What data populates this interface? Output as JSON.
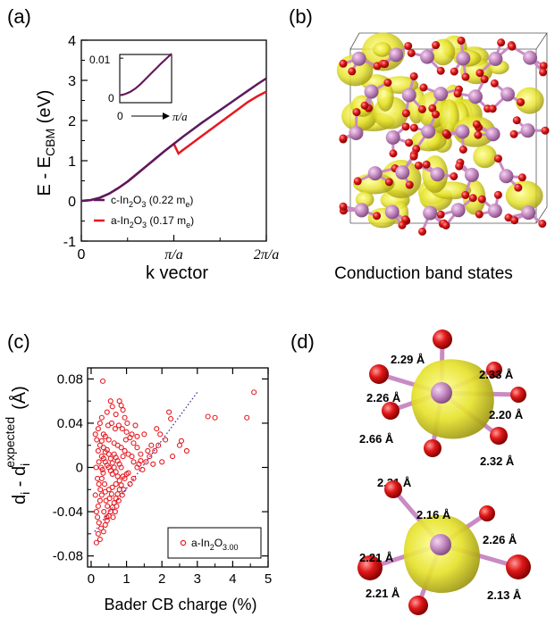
{
  "panels": {
    "a": {
      "label": "(a)",
      "ylabel_main": "E - E",
      "ylabel_sub": "CBM",
      "ylabel_unit": " (eV)",
      "xlabel": "k vector",
      "legend": [
        {
          "pre": "c-In",
          "sub1": "2",
          "mid": "O",
          "sub2": "3",
          "post": " (0.22 m",
          "sub3": "e",
          "end": ")",
          "color": "#5b1a5e"
        },
        {
          "pre": "a-In",
          "sub1": "2",
          "mid": "O",
          "sub2": "3",
          "post": " (0.17 m",
          "sub3": "e",
          "end": ")",
          "color": "#e8171f"
        }
      ],
      "inset": {
        "yticks": [
          "0.01",
          "0"
        ],
        "xtick0": "0",
        "xtick1": "π/a"
      }
    },
    "b": {
      "label": "(b)",
      "caption": "Conduction band states"
    },
    "c": {
      "label": "(c)",
      "xlabel": "Bader CB charge (%)",
      "ylabel_a": "d",
      "ylabel_a_sub": "i",
      "ylabel_b": " - d",
      "ylabel_b_sub": "i",
      "ylabel_b_sup": "expected",
      "ylabel_unit": "(Å)",
      "legend": {
        "pre": "a-In",
        "sub1": "2",
        "mid": "O",
        "sub2": "3.00"
      }
    },
    "d": {
      "label": "(d)",
      "top_bonds": [
        "2.29 Å",
        "2.33 Å",
        "2.26 Å",
        "2.20 Å",
        "2.66 Å",
        "2.32 Å",
        "2.31 Å"
      ],
      "bottom_bonds": [
        "2.16 Å",
        "2.26 Å",
        "2.21 Å",
        "2.21 Å",
        "2.13 Å"
      ]
    }
  },
  "chart_data": [
    {
      "type": "line",
      "panel": "a",
      "ylim": [
        -1,
        4
      ],
      "yticks": [
        -1,
        0,
        1,
        2,
        3,
        4
      ],
      "xticks": [
        "0",
        "π/a",
        "2π/a"
      ],
      "series": [
        {
          "name": "c-In2O3 (0.22 me)",
          "color": "#5b1a5e",
          "x": [
            0,
            0.1,
            0.2,
            0.3,
            0.4,
            0.5,
            0.6,
            0.7,
            0.8,
            0.9,
            1.0,
            1.1,
            1.2,
            1.3,
            1.4,
            1.5,
            1.6,
            1.7,
            1.8,
            1.9,
            2.0
          ],
          "y": [
            0,
            0.02,
            0.08,
            0.18,
            0.32,
            0.48,
            0.67,
            0.86,
            1.05,
            1.24,
            1.42,
            1.6,
            1.77,
            1.94,
            2.1,
            2.26,
            2.42,
            2.58,
            2.74,
            2.9,
            3.05
          ]
        },
        {
          "name": "a-In2O3 (0.17 me)",
          "color": "#e8171f",
          "x": [
            0,
            0.1,
            0.2,
            0.3,
            0.4,
            0.5,
            0.6,
            0.7,
            0.8,
            0.9,
            1.0,
            1.05,
            1.1,
            1.2,
            1.3,
            1.4,
            1.5,
            1.6,
            1.7,
            1.8,
            1.9,
            2.0
          ],
          "y": [
            0,
            0.02,
            0.08,
            0.18,
            0.32,
            0.48,
            0.67,
            0.86,
            1.05,
            1.24,
            1.42,
            1.18,
            1.27,
            1.44,
            1.61,
            1.78,
            1.95,
            2.12,
            2.29,
            2.46,
            2.6,
            2.72
          ]
        }
      ]
    },
    {
      "type": "line",
      "panel": "a-inset",
      "ylim": [
        -0.002,
        0.011
      ],
      "yticks": [
        0,
        0.01
      ],
      "series": [
        {
          "name": "c-In2O3",
          "color": "#5b1a5e",
          "x": [
            0,
            0.1,
            0.2,
            0.3,
            0.4,
            0.5,
            0.6,
            0.7,
            0.8,
            0.9,
            1.0
          ],
          "y": [
            0,
            0.0003,
            0.0009,
            0.0018,
            0.003,
            0.0044,
            0.0058,
            0.0072,
            0.0086,
            0.0099,
            0.0112
          ]
        },
        {
          "name": "a-In2O3",
          "color": "#e8171f",
          "x": [
            0,
            0.1,
            0.2,
            0.3,
            0.4,
            0.5,
            0.6,
            0.7,
            0.8,
            0.9,
            1.0
          ],
          "y": [
            0,
            0.0003,
            0.0009,
            0.0018,
            0.003,
            0.0044,
            0.0058,
            0.0072,
            0.0086,
            0.0099,
            0.0112
          ]
        }
      ]
    },
    {
      "type": "scatter",
      "panel": "c",
      "xlim": [
        -0.1,
        5
      ],
      "ylim": [
        -0.09,
        0.09
      ],
      "xticks": [
        0,
        1,
        2,
        3,
        4,
        5
      ],
      "yticks": [
        -0.08,
        -0.04,
        0,
        0.04,
        0.08
      ],
      "fit_line": {
        "x": [
          0.1,
          3.0
        ],
        "y": [
          -0.058,
          0.068
        ]
      },
      "points": [
        [
          0.33,
          0.078
        ],
        [
          2.2,
          0.05
        ],
        [
          2.25,
          0.044
        ],
        [
          3.3,
          0.046
        ],
        [
          3.5,
          0.045
        ],
        [
          4.4,
          0.045
        ],
        [
          4.6,
          0.068
        ],
        [
          2.7,
          0.015
        ],
        [
          2.55,
          0.024
        ],
        [
          2.1,
          0.025
        ],
        [
          1.9,
          0.02
        ],
        [
          1.8,
          0.015
        ],
        [
          1.65,
          0.01
        ],
        [
          1.55,
          0.005
        ],
        [
          1.75,
          0.003
        ],
        [
          1.4,
          0.012
        ],
        [
          1.3,
          0.018
        ],
        [
          1.2,
          0.022
        ],
        [
          1.1,
          0.027
        ],
        [
          1.0,
          0.032
        ],
        [
          0.95,
          0.045
        ],
        [
          0.9,
          0.052
        ],
        [
          0.85,
          0.056
        ],
        [
          0.8,
          0.06
        ],
        [
          1.25,
          0.038
        ],
        [
          1.5,
          0.03
        ],
        [
          0.6,
          0.055
        ],
        [
          0.55,
          0.06
        ],
        [
          0.7,
          0.048
        ],
        [
          0.45,
          0.05
        ],
        [
          0.3,
          0.045
        ],
        [
          0.25,
          0.04
        ],
        [
          0.2,
          0.035
        ],
        [
          0.35,
          0.03
        ],
        [
          0.4,
          0.028
        ],
        [
          0.5,
          0.025
        ],
        [
          0.65,
          0.022
        ],
        [
          0.75,
          0.02
        ],
        [
          0.85,
          0.018
        ],
        [
          0.95,
          0.015
        ],
        [
          1.05,
          0.012
        ],
        [
          1.15,
          0.01
        ],
        [
          1.2,
          0.005
        ],
        [
          1.35,
          0.003
        ],
        [
          1.45,
          -0.002
        ],
        [
          1.05,
          -0.005
        ],
        [
          0.9,
          -0.008
        ],
        [
          0.8,
          -0.012
        ],
        [
          0.7,
          -0.015
        ],
        [
          0.6,
          -0.018
        ],
        [
          0.5,
          -0.02
        ],
        [
          0.4,
          -0.022
        ],
        [
          0.3,
          -0.025
        ],
        [
          0.25,
          -0.03
        ],
        [
          0.2,
          -0.035
        ],
        [
          0.15,
          -0.04
        ],
        [
          0.18,
          -0.045
        ],
        [
          0.22,
          -0.05
        ],
        [
          0.28,
          -0.055
        ],
        [
          0.2,
          -0.06
        ],
        [
          0.25,
          -0.065
        ],
        [
          0.15,
          -0.068
        ],
        [
          0.35,
          -0.058
        ],
        [
          0.4,
          -0.052
        ],
        [
          0.45,
          -0.048
        ],
        [
          0.5,
          -0.044
        ],
        [
          0.55,
          -0.04
        ],
        [
          0.6,
          -0.036
        ],
        [
          0.65,
          -0.032
        ],
        [
          0.7,
          -0.028
        ],
        [
          0.75,
          -0.024
        ],
        [
          0.8,
          -0.02
        ],
        [
          0.85,
          -0.016
        ],
        [
          0.95,
          -0.01
        ],
        [
          1.0,
          -0.006
        ],
        [
          0.3,
          0.01
        ],
        [
          0.35,
          0.008
        ],
        [
          0.4,
          0.005
        ],
        [
          0.45,
          0.002
        ],
        [
          0.5,
          0.0
        ],
        [
          0.55,
          -0.003
        ],
        [
          0.6,
          -0.006
        ],
        [
          0.65,
          0.012
        ],
        [
          0.7,
          0.009
        ],
        [
          0.75,
          0.006
        ],
        [
          0.8,
          0.003
        ],
        [
          0.85,
          0.0
        ],
        [
          0.9,
          0.01
        ],
        [
          0.2,
          0.015
        ],
        [
          0.25,
          0.02
        ],
        [
          0.3,
          0.024
        ],
        [
          0.35,
          0.018
        ],
        [
          0.4,
          0.014
        ],
        [
          0.45,
          0.016
        ],
        [
          0.5,
          0.012
        ],
        [
          0.55,
          0.008
        ],
        [
          0.6,
          0.004
        ],
        [
          0.65,
          0.0
        ],
        [
          0.7,
          -0.004
        ],
        [
          0.75,
          -0.008
        ],
        [
          0.18,
          -0.01
        ],
        [
          0.22,
          -0.015
        ],
        [
          0.26,
          -0.02
        ],
        [
          0.3,
          -0.01
        ],
        [
          0.34,
          -0.005
        ],
        [
          0.38,
          -0.015
        ],
        [
          0.42,
          -0.03
        ],
        [
          0.46,
          -0.035
        ],
        [
          0.52,
          -0.028
        ],
        [
          0.58,
          -0.024
        ],
        [
          0.62,
          -0.045
        ],
        [
          0.68,
          -0.04
        ],
        [
          0.72,
          -0.035
        ],
        [
          0.78,
          -0.03
        ],
        [
          0.88,
          -0.025
        ],
        [
          0.92,
          -0.02
        ],
        [
          1.1,
          -0.015
        ],
        [
          1.2,
          -0.01
        ],
        [
          1.3,
          0.0
        ],
        [
          1.4,
          0.006
        ],
        [
          1.6,
          0.015
        ],
        [
          1.7,
          0.02
        ],
        [
          1.3,
          0.028
        ],
        [
          1.15,
          0.03
        ],
        [
          0.98,
          0.025
        ],
        [
          0.22,
          0.005
        ],
        [
          0.28,
          0.0
        ],
        [
          0.32,
          -0.002
        ],
        [
          0.36,
          -0.04
        ],
        [
          0.44,
          -0.045
        ],
        [
          0.12,
          -0.025
        ],
        [
          0.14,
          0.0
        ],
        [
          0.16,
          0.025
        ],
        [
          0.12,
          0.03
        ],
        [
          1.02,
          0.04
        ],
        [
          0.88,
          0.035
        ],
        [
          0.78,
          0.038
        ],
        [
          0.68,
          0.035
        ],
        [
          0.58,
          0.04
        ],
        [
          0.48,
          0.038
        ],
        [
          2.0,
          0.005
        ],
        [
          2.3,
          0.01
        ],
        [
          2.5,
          0.02
        ],
        [
          1.95,
          0.03
        ],
        [
          1.85,
          0.035
        ]
      ]
    }
  ]
}
